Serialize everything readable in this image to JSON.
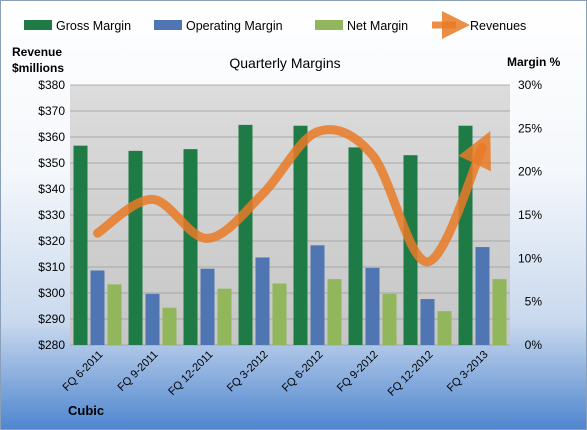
{
  "chart_data": {
    "type": "bar",
    "title": "Quarterly Margins",
    "footer": "Cubic",
    "y_left_label": [
      "Revenue",
      "$millions"
    ],
    "y_right_label": "Margin %",
    "categories": [
      "FQ 6-2011",
      "FQ 9-2011",
      "FQ 12-2011",
      "FQ 3-2012",
      "FQ 6-2012",
      "FQ 9-2012",
      "FQ 12-2012",
      "FQ 3-2013"
    ],
    "y_left_ticks": [
      "$280",
      "$290",
      "$300",
      "$310",
      "$320",
      "$330",
      "$340",
      "$350",
      "$360",
      "$370",
      "$380"
    ],
    "y_right_ticks": [
      "0%",
      "5%",
      "10%",
      "15%",
      "20%",
      "25%",
      "30%"
    ],
    "ylim_left": [
      280,
      380
    ],
    "ylim_right": [
      0,
      30
    ],
    "legend_position": "top",
    "grid": true,
    "series": [
      {
        "name": "Gross Margin",
        "kind": "bar",
        "axis": "right",
        "color": "#1e7b45",
        "values": [
          23.0,
          22.4,
          22.6,
          25.4,
          25.3,
          22.8,
          21.9,
          25.3
        ]
      },
      {
        "name": "Operating Margin",
        "kind": "bar",
        "axis": "right",
        "color": "#4f76b3",
        "values": [
          8.6,
          5.9,
          8.8,
          10.1,
          11.5,
          8.9,
          5.3,
          11.3
        ]
      },
      {
        "name": "Net Margin",
        "kind": "bar",
        "axis": "right",
        "color": "#92b65c",
        "values": [
          7.0,
          4.3,
          6.5,
          7.1,
          7.6,
          5.9,
          3.9,
          7.6
        ]
      },
      {
        "name": "Revenues",
        "kind": "line",
        "axis": "left",
        "color": "#e97a26",
        "values": [
          323,
          336,
          321,
          338,
          362,
          353,
          312,
          356
        ]
      }
    ]
  }
}
